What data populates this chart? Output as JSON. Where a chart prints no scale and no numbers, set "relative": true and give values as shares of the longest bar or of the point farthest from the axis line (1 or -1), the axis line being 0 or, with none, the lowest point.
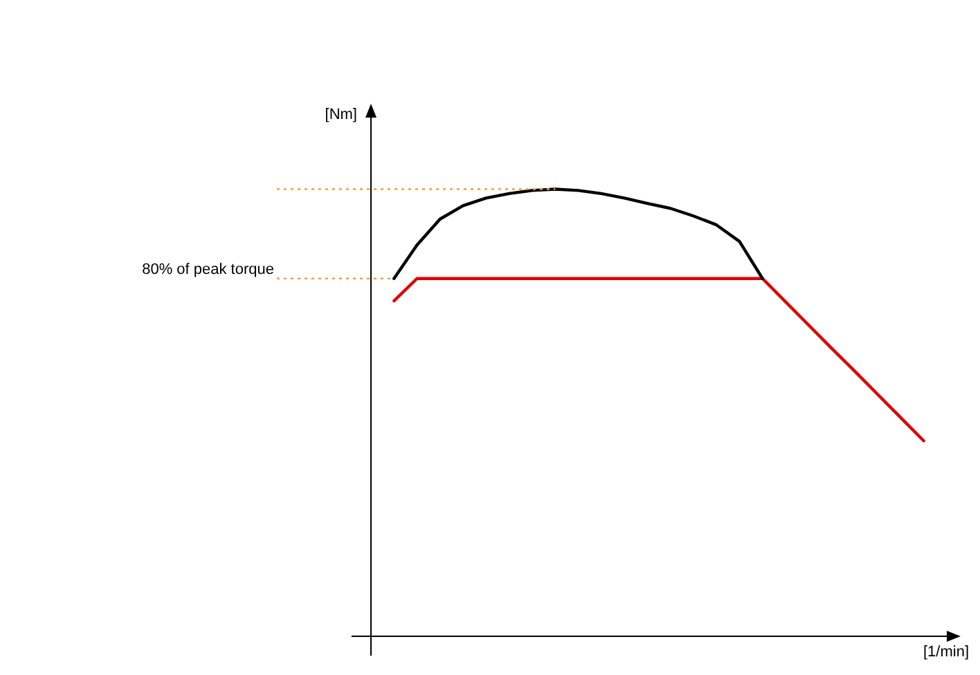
{
  "chart_data": {
    "type": "line",
    "relative": true,
    "xlabel": "[1/min]",
    "ylabel": "[Nm]",
    "legend": false,
    "marker": "none",
    "line_style": "solid",
    "categories": [
      null,
      null,
      null,
      null,
      null,
      null,
      null,
      null,
      null,
      null,
      null,
      null,
      null,
      null,
      null,
      null,
      null,
      null,
      null,
      null,
      null,
      null,
      null,
      null,
      null,
      null
    ],
    "series": [
      {
        "color": "#000000",
        "values": [
          null,
          0.8,
          0.875,
          0.933,
          0.963,
          0.98,
          0.99,
          0.997,
          1,
          0.997,
          0.99,
          0.98,
          0.968,
          0.957,
          0.94,
          0.92,
          0.883,
          0.8,
          null,
          null,
          null,
          null,
          null,
          null,
          null,
          null
        ]
      },
      {
        "color": "#e00000",
        "values": [
          null,
          0.75,
          0.8,
          0.8,
          0.8,
          0.8,
          0.8,
          0.8,
          0.8,
          0.8,
          0.8,
          0.8,
          0.8,
          0.8,
          0.8,
          0.8,
          0.8,
          0.8,
          0.748,
          0.696,
          0.644,
          0.593,
          0.541,
          0.489,
          0.437,
          null
        ]
      }
    ],
    "ref_lines": [
      {
        "axis": "y",
        "value": 0.8,
        "label": "80% of peak torque",
        "color": "#f0a040",
        "line_style": "dotted"
      },
      {
        "axis": "y",
        "value": 1,
        "label": null,
        "color": "#f0a040",
        "line_style": "dotted"
      }
    ]
  }
}
